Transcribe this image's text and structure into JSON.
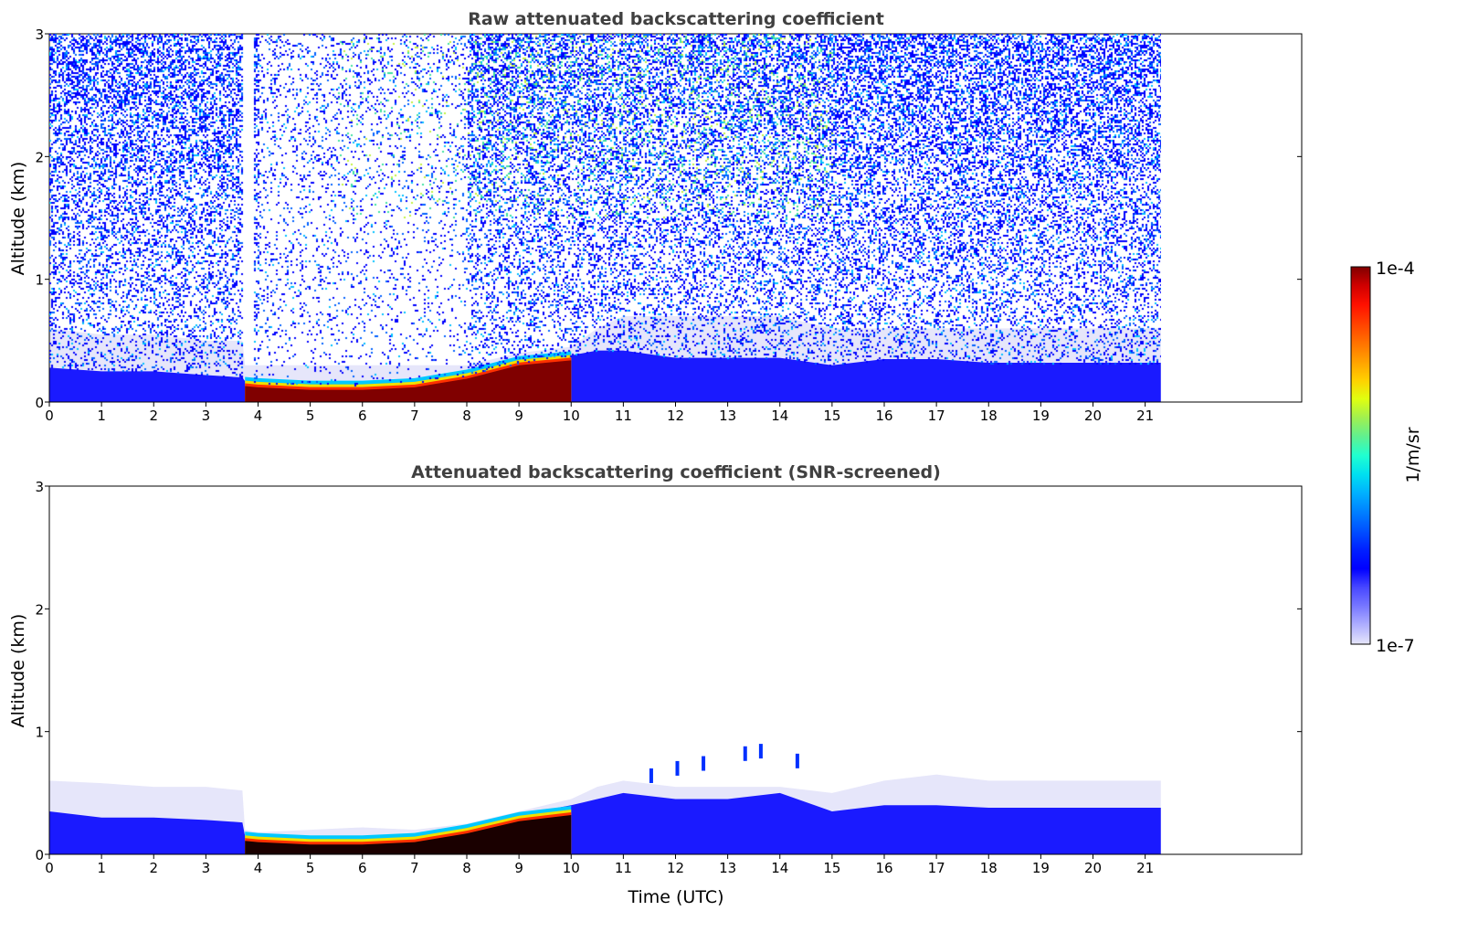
{
  "chart_data": [
    {
      "type": "heatmap",
      "title": "Raw attenuated backscattering coefficient",
      "xlabel": "",
      "ylabel": "Altitude (km)",
      "xlim": [
        0,
        24
      ],
      "ylim": [
        0,
        3
      ],
      "xticks": [
        0,
        1,
        2,
        3,
        4,
        5,
        6,
        7,
        8,
        9,
        10,
        11,
        12,
        13,
        14,
        15,
        16,
        17,
        18,
        19,
        20,
        21
      ],
      "yticks": [
        0,
        1,
        2,
        3
      ],
      "data_end_time": 21.3,
      "profile": {
        "t": [
          0,
          1,
          2,
          3,
          3.7,
          3.75,
          4,
          5,
          6,
          7,
          8,
          9,
          10,
          10.5,
          11,
          12,
          13,
          14,
          15,
          16,
          17,
          18,
          19,
          20,
          21.3
        ],
        "faint_top_km": [
          0.6,
          0.55,
          0.55,
          0.5,
          0.5,
          0.3,
          0.3,
          0.3,
          0.3,
          0.3,
          0.3,
          0.4,
          0.45,
          0.6,
          0.7,
          0.7,
          0.7,
          0.7,
          0.6,
          0.6,
          0.6,
          0.6,
          0.6,
          0.6,
          0.6
        ],
        "aerosol_top_km": [
          0.28,
          0.25,
          0.25,
          0.22,
          0.2,
          0.17,
          0.15,
          0.14,
          0.14,
          0.16,
          0.22,
          0.32,
          0.38,
          0.42,
          0.42,
          0.36,
          0.36,
          0.36,
          0.3,
          0.35,
          0.35,
          0.32,
          0.32,
          0.32,
          0.32
        ],
        "strong_top_km": [
          0,
          0,
          0,
          0,
          0,
          0.13,
          0.12,
          0.1,
          0.1,
          0.12,
          0.19,
          0.3,
          0.34,
          0,
          0,
          0,
          0,
          0,
          0,
          0,
          0,
          0,
          0,
          0,
          0
        ],
        "noise_above": true
      }
    },
    {
      "type": "heatmap",
      "title": "Attenuated backscattering coefficient (SNR-screened)",
      "xlabel": "Time (UTC)",
      "ylabel": "Altitude (km)",
      "xlim": [
        0,
        24
      ],
      "ylim": [
        0,
        3
      ],
      "xticks": [
        0,
        1,
        2,
        3,
        4,
        5,
        6,
        7,
        8,
        9,
        10,
        11,
        12,
        13,
        14,
        15,
        16,
        17,
        18,
        19,
        20,
        21
      ],
      "yticks": [
        0,
        1,
        2,
        3
      ],
      "data_end_time": 21.3,
      "profile": {
        "t": [
          0,
          1,
          2,
          3,
          3.7,
          3.75,
          4,
          5,
          6,
          7,
          8,
          9,
          10,
          10.5,
          11,
          12,
          13,
          14,
          15,
          16,
          17,
          18,
          19,
          20,
          21.3
        ],
        "faint_top_km": [
          0.6,
          0.58,
          0.55,
          0.55,
          0.52,
          0.2,
          0.18,
          0.2,
          0.22,
          0.2,
          0.25,
          0.35,
          0.45,
          0.55,
          0.6,
          0.55,
          0.55,
          0.55,
          0.5,
          0.6,
          0.65,
          0.6,
          0.6,
          0.6,
          0.6
        ],
        "aerosol_top_km": [
          0.35,
          0.3,
          0.3,
          0.28,
          0.26,
          0.15,
          0.14,
          0.13,
          0.13,
          0.15,
          0.22,
          0.32,
          0.4,
          0.45,
          0.5,
          0.45,
          0.45,
          0.5,
          0.35,
          0.4,
          0.4,
          0.38,
          0.38,
          0.38,
          0.38
        ],
        "strong_top_km": [
          0,
          0,
          0,
          0,
          0,
          0.11,
          0.1,
          0.08,
          0.08,
          0.1,
          0.17,
          0.27,
          0.32,
          0,
          0,
          0,
          0,
          0,
          0,
          0,
          0,
          0,
          0,
          0,
          0
        ],
        "noise_above": false
      }
    }
  ],
  "colorbar": {
    "max_label": "1e-4",
    "min_label": "1e-7",
    "unit_label": "1/m/sr",
    "colors": [
      "#e6e6fa",
      "#b0b0ff",
      "#7878ff",
      "#4848ff",
      "#0000ff",
      "#0020ff",
      "#0050ff",
      "#0080ff",
      "#00b0ff",
      "#00e0f0",
      "#20ffd0",
      "#60f090",
      "#a0f050",
      "#e0ff10",
      "#ffd000",
      "#ffa000",
      "#ff7000",
      "#ff4000",
      "#ff1000",
      "#d00000",
      "#800000"
    ]
  }
}
